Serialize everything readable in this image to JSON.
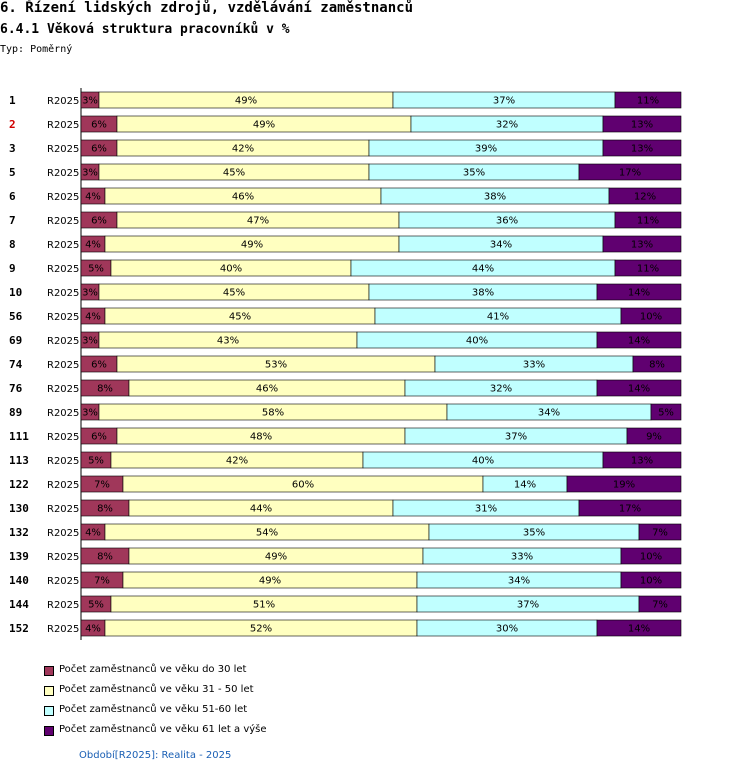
{
  "header": {
    "title": "6. Řízení lidských zdrojů, vzdělávání zaměstnanců",
    "subtitle": "6.4.1 Věková struktura pracovníků v %",
    "type_label": "Typ: Poměrný"
  },
  "chart_data": {
    "type": "bar",
    "orientation": "horizontal",
    "stacked": true,
    "percent": true,
    "period": "R2025",
    "categories": [
      "1",
      "2",
      "3",
      "5",
      "6",
      "7",
      "8",
      "9",
      "10",
      "56",
      "69",
      "74",
      "76",
      "89",
      "111",
      "113",
      "122",
      "130",
      "132",
      "139",
      "140",
      "144",
      "152"
    ],
    "highlighted_category": "2",
    "series": [
      {
        "name": "Počet zaměstnanců ve věku do 30 let",
        "color": "#a0375a",
        "values": [
          3,
          6,
          6,
          3,
          4,
          6,
          4,
          5,
          3,
          4,
          3,
          6,
          8,
          3,
          6,
          5,
          7,
          8,
          4,
          8,
          7,
          5,
          4
        ]
      },
      {
        "name": "Počet zaměstnanců ve věku 31 - 50 let",
        "color": "#ffffc0",
        "values": [
          49,
          49,
          42,
          45,
          46,
          47,
          49,
          40,
          45,
          45,
          43,
          53,
          46,
          58,
          48,
          42,
          60,
          44,
          54,
          49,
          49,
          51,
          52
        ]
      },
      {
        "name": "Počet zaměstnanců ve věku 51-60 let",
        "color": "#c0ffff",
        "values": [
          37,
          32,
          39,
          35,
          38,
          36,
          34,
          44,
          38,
          41,
          40,
          33,
          32,
          34,
          37,
          40,
          14,
          31,
          35,
          33,
          34,
          37,
          30
        ]
      },
      {
        "name": "Počet zaměstnanců ve věku 61 let a výše",
        "color": "#600070",
        "values": [
          11,
          13,
          13,
          17,
          12,
          11,
          13,
          11,
          14,
          10,
          14,
          8,
          14,
          5,
          9,
          13,
          19,
          17,
          7,
          10,
          10,
          7,
          14
        ]
      }
    ],
    "xlim": [
      0,
      100
    ]
  },
  "colors": {
    "highlight": "#d00000",
    "footer": "#1a5fb4",
    "gridline": "#000000"
  },
  "footer": {
    "text": "Období[R2025]: Realita - 2025"
  }
}
